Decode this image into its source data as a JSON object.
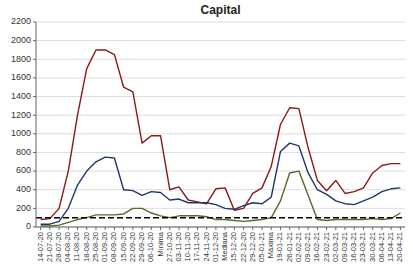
{
  "chart_data": {
    "type": "line",
    "title": "Capital",
    "categories": [
      "14-07-20",
      "21-07-20",
      "28-07-20",
      "04-08-20",
      "11-08-20",
      "18-08-20",
      "25-08-20",
      "01-09-20",
      "08-09-20",
      "15-09-20",
      "22-09-20",
      "29-09-20",
      "06-10-20",
      "Mínima",
      "27-10-20",
      "03-11-20",
      "10-11-20",
      "17-11-20",
      "24-11-20",
      "01-12-20",
      "Mediana",
      "15-12-20",
      "22-12-20",
      "29-12-20",
      "05-01-21",
      "Máxima",
      "19-01-21",
      "26-01-21",
      "02-02-21",
      "09-02-21",
      "16-02-21",
      "23-02-21",
      "02-03-21",
      "09-03-21",
      "16-03-21",
      "23-03-21",
      "30-03-21",
      "06-04-21",
      "13-04-21",
      "20-04-21"
    ],
    "series": [
      {
        "color": "#8B1A1A",
        "values": [
          80,
          90,
          200,
          600,
          1200,
          1700,
          1900,
          1900,
          1850,
          1500,
          1450,
          900,
          980,
          980,
          400,
          430,
          290,
          270,
          250,
          410,
          420,
          180,
          200,
          360,
          420,
          650,
          1100,
          1280,
          1270,
          850,
          500,
          390,
          500,
          360,
          380,
          420,
          580,
          660,
          680,
          680
        ]
      },
      {
        "color": "#1F3864",
        "values": [
          30,
          30,
          60,
          200,
          450,
          600,
          700,
          750,
          740,
          400,
          390,
          340,
          380,
          370,
          290,
          300,
          260,
          260,
          260,
          240,
          200,
          190,
          230,
          260,
          250,
          320,
          810,
          900,
          870,
          580,
          400,
          350,
          280,
          250,
          240,
          280,
          320,
          380,
          410,
          420
        ]
      },
      {
        "color": "#556B2F",
        "values": [
          10,
          10,
          20,
          50,
          80,
          100,
          130,
          130,
          130,
          140,
          200,
          200,
          150,
          120,
          100,
          120,
          120,
          120,
          110,
          80,
          80,
          70,
          60,
          70,
          80,
          100,
          280,
          580,
          600,
          340,
          80,
          70,
          80,
          80,
          80,
          80,
          90,
          80,
          90,
          150
        ]
      }
    ],
    "threshold": {
      "value": 100,
      "color": "#000000",
      "line_style": "dashed"
    },
    "ylim": [
      0,
      2200
    ],
    "yticks": [
      0,
      200,
      400,
      600,
      800,
      1000,
      1200,
      1400,
      1600,
      1800,
      2000,
      2200
    ],
    "grid": true
  }
}
